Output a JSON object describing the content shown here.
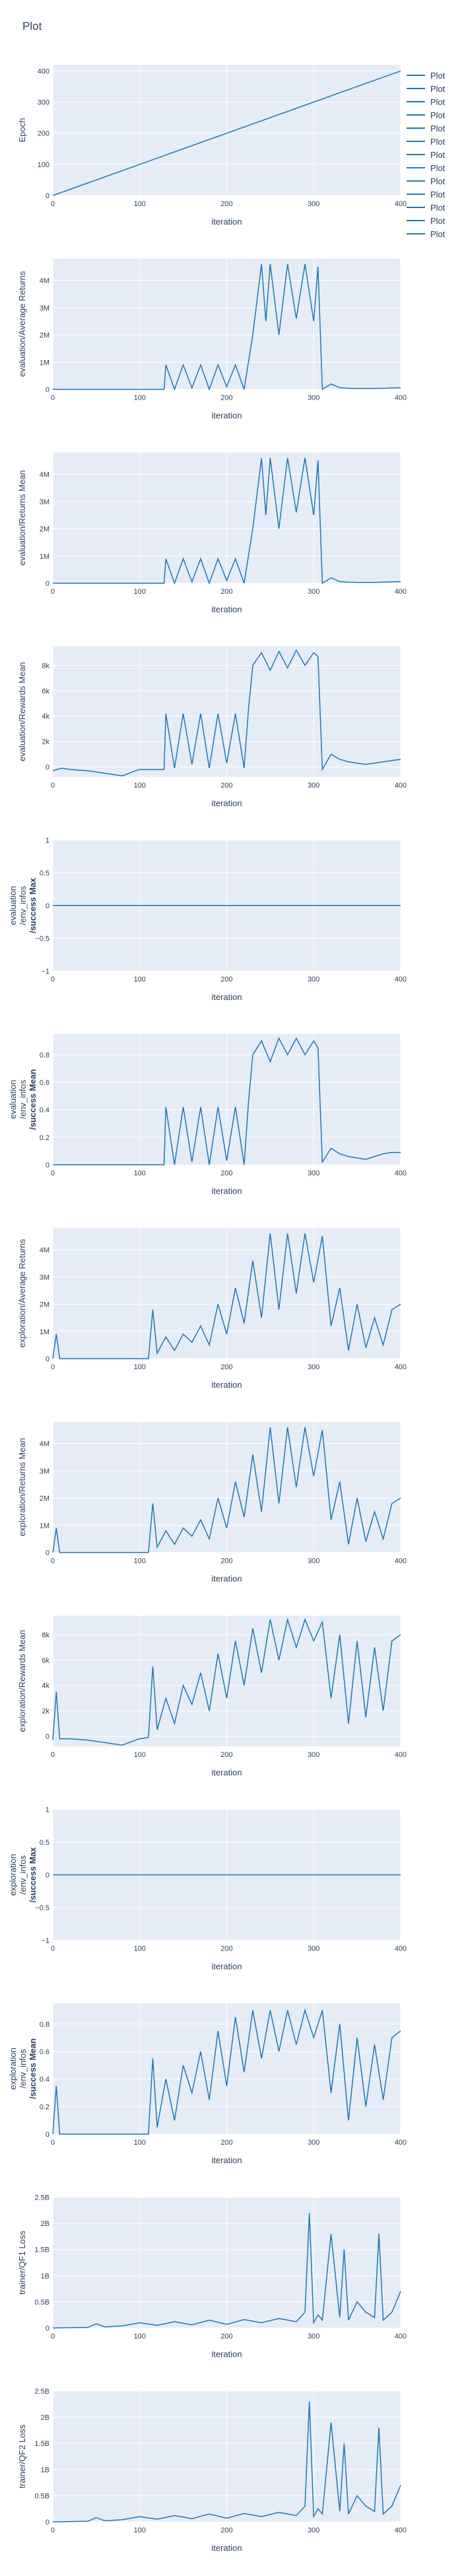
{
  "title": "Plot",
  "colors": {
    "line": "#1f77b4",
    "plot_bg": "#e5ecf6",
    "grid": "#ffffff",
    "text": "#2a3f5f"
  },
  "legend": {
    "items": [
      "Plot",
      "Plot",
      "Plot",
      "Plot",
      "Plot",
      "Plot",
      "Plot",
      "Plot",
      "Plot",
      "Plot",
      "Plot",
      "Plot",
      "Plot"
    ]
  },
  "chart_data": [
    {
      "type": "line",
      "ylabel": "Epoch",
      "xlabel": "iteration",
      "xlim": [
        0,
        400
      ],
      "ylim": [
        0,
        420
      ],
      "xticks": [
        0,
        100,
        200,
        300,
        400
      ],
      "xtick_labels": [
        "0",
        "100",
        "200",
        "300",
        "400"
      ],
      "yticks": [
        0,
        100,
        200,
        300,
        400
      ],
      "ytick_labels": [
        "0",
        "100",
        "200",
        "300",
        "400"
      ],
      "x": [
        0,
        400
      ],
      "y": [
        0,
        400
      ]
    },
    {
      "type": "line",
      "ylabel": "evaluation/Average Returns",
      "xlabel": "iteration",
      "xlim": [
        0,
        400
      ],
      "ylim": [
        0,
        4800000
      ],
      "xticks": [
        0,
        100,
        200,
        300,
        400
      ],
      "xtick_labels": [
        "0",
        "100",
        "200",
        "300",
        "400"
      ],
      "yticks": [
        0,
        1000000,
        2000000,
        3000000,
        4000000
      ],
      "ytick_labels": [
        "0",
        "1M",
        "2M",
        "3M",
        "4M"
      ],
      "x": [
        0,
        40,
        80,
        120,
        128,
        130,
        140,
        150,
        160,
        170,
        180,
        190,
        200,
        210,
        220,
        225,
        230,
        240,
        245,
        250,
        260,
        270,
        280,
        290,
        300,
        305,
        310,
        320,
        330,
        340,
        350,
        360,
        370,
        380,
        390,
        400
      ],
      "y": [
        0,
        0,
        0,
        0,
        0,
        900000,
        0,
        900000,
        50000,
        900000,
        0,
        900000,
        100000,
        900000,
        0,
        1000000,
        2000000,
        4600000,
        2500000,
        4600000,
        2000000,
        4600000,
        2600000,
        4600000,
        2500000,
        4500000,
        0,
        200000,
        60000,
        40000,
        30000,
        30000,
        30000,
        40000,
        50000,
        60000
      ]
    },
    {
      "type": "line",
      "ylabel": "evaluation/Returns Mean",
      "xlabel": "iteration",
      "xlim": [
        0,
        400
      ],
      "ylim": [
        0,
        4800000
      ],
      "xticks": [
        0,
        100,
        200,
        300,
        400
      ],
      "xtick_labels": [
        "0",
        "100",
        "200",
        "300",
        "400"
      ],
      "yticks": [
        0,
        1000000,
        2000000,
        3000000,
        4000000
      ],
      "ytick_labels": [
        "0",
        "1M",
        "2M",
        "3M",
        "4M"
      ],
      "x": [
        0,
        40,
        80,
        120,
        128,
        130,
        140,
        150,
        160,
        170,
        180,
        190,
        200,
        210,
        220,
        225,
        230,
        240,
        245,
        250,
        260,
        270,
        280,
        290,
        300,
        305,
        310,
        320,
        330,
        340,
        350,
        360,
        370,
        380,
        390,
        400
      ],
      "y": [
        0,
        0,
        0,
        0,
        0,
        900000,
        0,
        900000,
        50000,
        900000,
        0,
        900000,
        100000,
        900000,
        0,
        1000000,
        2000000,
        4600000,
        2500000,
        4600000,
        2000000,
        4600000,
        2600000,
        4600000,
        2500000,
        4500000,
        0,
        200000,
        60000,
        40000,
        30000,
        30000,
        30000,
        40000,
        50000,
        60000
      ]
    },
    {
      "type": "line",
      "ylabel": "evaluation/Rewards Mean",
      "xlabel": "iteration",
      "xlim": [
        0,
        400
      ],
      "ylim": [
        -800,
        9500
      ],
      "xticks": [
        0,
        100,
        200,
        300,
        400
      ],
      "xtick_labels": [
        "0",
        "100",
        "200",
        "300",
        "400"
      ],
      "yticks": [
        0,
        2000,
        4000,
        6000,
        8000
      ],
      "ytick_labels": [
        "0",
        "2k",
        "4k",
        "6k",
        "8k"
      ],
      "x": [
        0,
        10,
        20,
        40,
        60,
        80,
        95,
        100,
        110,
        120,
        128,
        130,
        140,
        150,
        160,
        170,
        180,
        190,
        200,
        210,
        220,
        225,
        230,
        240,
        250,
        260,
        270,
        280,
        290,
        300,
        305,
        310,
        320,
        330,
        340,
        350,
        360,
        370,
        380,
        390,
        400
      ],
      "y": [
        -300,
        -100,
        -200,
        -300,
        -500,
        -700,
        -300,
        -200,
        -200,
        -200,
        -200,
        4200,
        -100,
        4200,
        200,
        4200,
        -100,
        4200,
        300,
        4200,
        -100,
        4500,
        8000,
        9000,
        7600,
        9100,
        7800,
        9200,
        8000,
        9000,
        8700,
        -200,
        1000,
        600,
        400,
        300,
        200,
        300,
        400,
        500,
        600
      ]
    },
    {
      "type": "line",
      "ylabel": "evaluation /env_infos /success Max",
      "xlabel": "iteration",
      "xlim": [
        0,
        400
      ],
      "ylim": [
        -1,
        1
      ],
      "xticks": [
        0,
        100,
        200,
        300,
        400
      ],
      "xtick_labels": [
        "0",
        "100",
        "200",
        "300",
        "400"
      ],
      "yticks": [
        -1,
        -0.5,
        0,
        0.5,
        1
      ],
      "ytick_labels": [
        "−1",
        "−0.5",
        "0",
        "0.5",
        "1"
      ],
      "x": [
        0,
        400
      ],
      "y": [
        0,
        0
      ]
    },
    {
      "type": "line",
      "ylabel": "evaluation /env_infos /success Mean",
      "xlabel": "iteration",
      "xlim": [
        0,
        400
      ],
      "ylim": [
        0,
        0.95
      ],
      "xticks": [
        0,
        100,
        200,
        300,
        400
      ],
      "xtick_labels": [
        "0",
        "100",
        "200",
        "300",
        "400"
      ],
      "yticks": [
        0,
        0.2,
        0.4,
        0.6,
        0.8
      ],
      "ytick_labels": [
        "0",
        "0.2",
        "0.4",
        "0.6",
        "0.8"
      ],
      "x": [
        0,
        40,
        80,
        120,
        128,
        130,
        140,
        150,
        160,
        170,
        180,
        190,
        200,
        210,
        220,
        225,
        230,
        240,
        250,
        260,
        270,
        280,
        290,
        300,
        305,
        310,
        320,
        330,
        340,
        350,
        360,
        370,
        380,
        390,
        400
      ],
      "y": [
        0,
        0,
        0,
        0,
        0,
        0.42,
        0,
        0.42,
        0.02,
        0.42,
        0,
        0.42,
        0.03,
        0.42,
        0,
        0.45,
        0.8,
        0.9,
        0.75,
        0.92,
        0.8,
        0.92,
        0.8,
        0.9,
        0.85,
        0.02,
        0.12,
        0.08,
        0.06,
        0.05,
        0.04,
        0.06,
        0.08,
        0.09,
        0.09
      ]
    },
    {
      "type": "line",
      "ylabel": "exploration/Average Returns",
      "xlabel": "iteration",
      "xlim": [
        0,
        400
      ],
      "ylim": [
        0,
        4800000
      ],
      "xticks": [
        0,
        100,
        200,
        300,
        400
      ],
      "xtick_labels": [
        "0",
        "100",
        "200",
        "300",
        "400"
      ],
      "yticks": [
        0,
        1000000,
        2000000,
        3000000,
        4000000
      ],
      "ytick_labels": [
        "0",
        "1M",
        "2M",
        "3M",
        "4M"
      ],
      "x": [
        0,
        4,
        8,
        40,
        80,
        110,
        115,
        120,
        130,
        140,
        150,
        160,
        170,
        180,
        190,
        200,
        210,
        220,
        230,
        240,
        250,
        260,
        270,
        280,
        290,
        300,
        310,
        320,
        330,
        340,
        350,
        360,
        370,
        380,
        390,
        400
      ],
      "y": [
        0,
        900000,
        0,
        0,
        0,
        0,
        1800000,
        200000,
        800000,
        300000,
        900000,
        600000,
        1200000,
        500000,
        2000000,
        900000,
        2600000,
        1300000,
        3600000,
        1500000,
        4600000,
        1800000,
        4600000,
        2400000,
        4600000,
        2800000,
        4500000,
        1200000,
        2600000,
        300000,
        2000000,
        400000,
        1500000,
        500000,
        1800000,
        2000000
      ]
    },
    {
      "type": "line",
      "ylabel": "exploration/Returns Mean",
      "xlabel": "iteration",
      "xlim": [
        0,
        400
      ],
      "ylim": [
        0,
        4800000
      ],
      "xticks": [
        0,
        100,
        200,
        300,
        400
      ],
      "xtick_labels": [
        "0",
        "100",
        "200",
        "300",
        "400"
      ],
      "yticks": [
        0,
        1000000,
        2000000,
        3000000,
        4000000
      ],
      "ytick_labels": [
        "0",
        "1M",
        "2M",
        "3M",
        "4M"
      ],
      "x": [
        0,
        4,
        8,
        40,
        80,
        110,
        115,
        120,
        130,
        140,
        150,
        160,
        170,
        180,
        190,
        200,
        210,
        220,
        230,
        240,
        250,
        260,
        270,
        280,
        290,
        300,
        310,
        320,
        330,
        340,
        350,
        360,
        370,
        380,
        390,
        400
      ],
      "y": [
        0,
        900000,
        0,
        0,
        0,
        0,
        1800000,
        200000,
        800000,
        300000,
        900000,
        600000,
        1200000,
        500000,
        2000000,
        900000,
        2600000,
        1300000,
        3600000,
        1500000,
        4600000,
        1800000,
        4600000,
        2400000,
        4600000,
        2800000,
        4500000,
        1200000,
        2600000,
        300000,
        2000000,
        400000,
        1500000,
        500000,
        1800000,
        2000000
      ]
    },
    {
      "type": "line",
      "ylabel": "exploration/Rewards Mean",
      "xlabel": "iteration",
      "xlim": [
        0,
        400
      ],
      "ylim": [
        -800,
        9500
      ],
      "xticks": [
        0,
        100,
        200,
        300,
        400
      ],
      "xtick_labels": [
        "0",
        "100",
        "200",
        "300",
        "400"
      ],
      "yticks": [
        0,
        2000,
        4000,
        6000,
        8000
      ],
      "ytick_labels": [
        "0",
        "2k",
        "4k",
        "6k",
        "8k"
      ],
      "x": [
        0,
        4,
        8,
        20,
        40,
        60,
        80,
        95,
        100,
        110,
        115,
        120,
        130,
        140,
        150,
        160,
        170,
        180,
        190,
        200,
        210,
        220,
        230,
        240,
        250,
        260,
        270,
        280,
        290,
        300,
        310,
        320,
        330,
        340,
        350,
        360,
        370,
        380,
        390,
        400
      ],
      "y": [
        -300,
        3500,
        -200,
        -200,
        -300,
        -500,
        -700,
        -300,
        -200,
        -100,
        5500,
        500,
        3000,
        1000,
        4000,
        2500,
        5000,
        2000,
        6500,
        3000,
        7500,
        4000,
        8500,
        5000,
        9200,
        6000,
        9200,
        7000,
        9200,
        7500,
        9000,
        3000,
        8000,
        1000,
        7500,
        1500,
        7000,
        2000,
        7500,
        8000
      ]
    },
    {
      "type": "line",
      "ylabel": "exploration /env_infos /success Max",
      "xlabel": "iteration",
      "xlim": [
        0,
        400
      ],
      "ylim": [
        -1,
        1
      ],
      "xticks": [
        0,
        100,
        200,
        300,
        400
      ],
      "xtick_labels": [
        "0",
        "100",
        "200",
        "300",
        "400"
      ],
      "yticks": [
        -1,
        -0.5,
        0,
        0.5,
        1
      ],
      "ytick_labels": [
        "−1",
        "−0.5",
        "0",
        "0.5",
        "1"
      ],
      "x": [
        0,
        400
      ],
      "y": [
        0,
        0
      ]
    },
    {
      "type": "line",
      "ylabel": "exploration /env_infos /success Mean",
      "xlabel": "iteration",
      "xlim": [
        0,
        400
      ],
      "ylim": [
        0,
        0.95
      ],
      "xticks": [
        0,
        100,
        200,
        300,
        400
      ],
      "xtick_labels": [
        "0",
        "100",
        "200",
        "300",
        "400"
      ],
      "yticks": [
        0,
        0.2,
        0.4,
        0.6,
        0.8
      ],
      "ytick_labels": [
        "0",
        "0.2",
        "0.4",
        "0.6",
        "0.8"
      ],
      "x": [
        0,
        4,
        8,
        40,
        80,
        110,
        115,
        120,
        130,
        140,
        150,
        160,
        170,
        180,
        190,
        200,
        210,
        220,
        230,
        240,
        250,
        260,
        270,
        280,
        290,
        300,
        310,
        320,
        330,
        340,
        350,
        360,
        370,
        380,
        390,
        400
      ],
      "y": [
        0,
        0.35,
        0,
        0,
        0,
        0,
        0.55,
        0.05,
        0.4,
        0.1,
        0.5,
        0.3,
        0.6,
        0.25,
        0.75,
        0.35,
        0.85,
        0.45,
        0.9,
        0.55,
        0.9,
        0.6,
        0.9,
        0.65,
        0.9,
        0.7,
        0.9,
        0.3,
        0.8,
        0.1,
        0.7,
        0.2,
        0.65,
        0.25,
        0.7,
        0.75
      ]
    },
    {
      "type": "line",
      "ylabel": "trainer/QF1 Loss",
      "xlabel": "iteration",
      "xlim": [
        0,
        400
      ],
      "ylim": [
        0,
        2500000000
      ],
      "xticks": [
        0,
        100,
        200,
        300,
        400
      ],
      "xtick_labels": [
        "0",
        "100",
        "200",
        "300",
        "400"
      ],
      "yticks": [
        0,
        500000000,
        1000000000,
        1500000000,
        2000000000,
        2500000000
      ],
      "ytick_labels": [
        "0",
        "0.5B",
        "1B",
        "1.5B",
        "2B",
        "2.5B"
      ],
      "x": [
        0,
        40,
        50,
        60,
        80,
        100,
        120,
        140,
        160,
        180,
        200,
        220,
        240,
        260,
        280,
        290,
        295,
        300,
        305,
        310,
        320,
        330,
        335,
        340,
        350,
        360,
        370,
        375,
        380,
        390,
        400
      ],
      "y": [
        0,
        10000000,
        80000000,
        20000000,
        40000000,
        100000000,
        50000000,
        120000000,
        60000000,
        150000000,
        70000000,
        160000000,
        100000000,
        180000000,
        120000000,
        300000000,
        2200000000,
        100000000,
        250000000,
        150000000,
        1800000000,
        200000000,
        1500000000,
        150000000,
        500000000,
        300000000,
        200000000,
        1800000000,
        150000000,
        300000000,
        700000000
      ]
    },
    {
      "type": "line",
      "ylabel": "trainer/QF2 Loss",
      "xlabel": "iteration",
      "xlim": [
        0,
        400
      ],
      "ylim": [
        0,
        2500000000
      ],
      "xticks": [
        0,
        100,
        200,
        300,
        400
      ],
      "xtick_labels": [
        "0",
        "100",
        "200",
        "300",
        "400"
      ],
      "yticks": [
        0,
        500000000,
        1000000000,
        1500000000,
        2000000000,
        2500000000
      ],
      "ytick_labels": [
        "0",
        "0.5B",
        "1B",
        "1.5B",
        "2B",
        "2.5B"
      ],
      "x": [
        0,
        40,
        50,
        60,
        80,
        100,
        120,
        140,
        160,
        180,
        200,
        220,
        240,
        260,
        280,
        290,
        295,
        300,
        305,
        310,
        320,
        330,
        335,
        340,
        350,
        360,
        370,
        375,
        380,
        390,
        400
      ],
      "y": [
        0,
        10000000,
        80000000,
        20000000,
        40000000,
        100000000,
        50000000,
        120000000,
        60000000,
        150000000,
        70000000,
        160000000,
        100000000,
        180000000,
        120000000,
        300000000,
        2300000000,
        100000000,
        250000000,
        150000000,
        1900000000,
        200000000,
        1500000000,
        150000000,
        500000000,
        300000000,
        200000000,
        1800000000,
        150000000,
        300000000,
        700000000
      ]
    }
  ]
}
